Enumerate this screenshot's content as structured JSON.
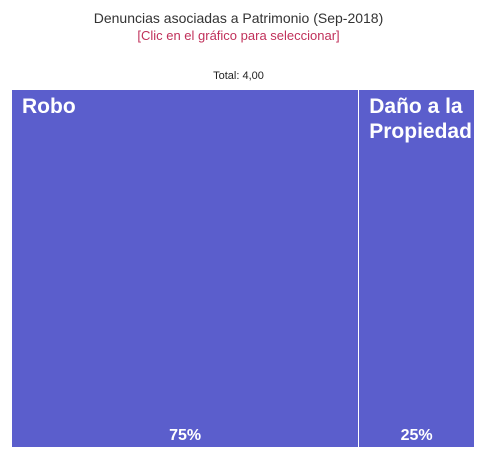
{
  "chart_data": {
    "type": "treemap",
    "title": "Denuncias asociadas a Patrimonio (Sep-2018)",
    "subtitle": "[Clic en el gráfico para seleccionar]",
    "total": "Total: 4,00",
    "categories": [
      "Robo",
      "Daño a la Propiedad"
    ],
    "values": [
      75,
      25
    ],
    "value_labels": [
      "75%",
      "25%"
    ],
    "color": "#5b5ecc"
  }
}
